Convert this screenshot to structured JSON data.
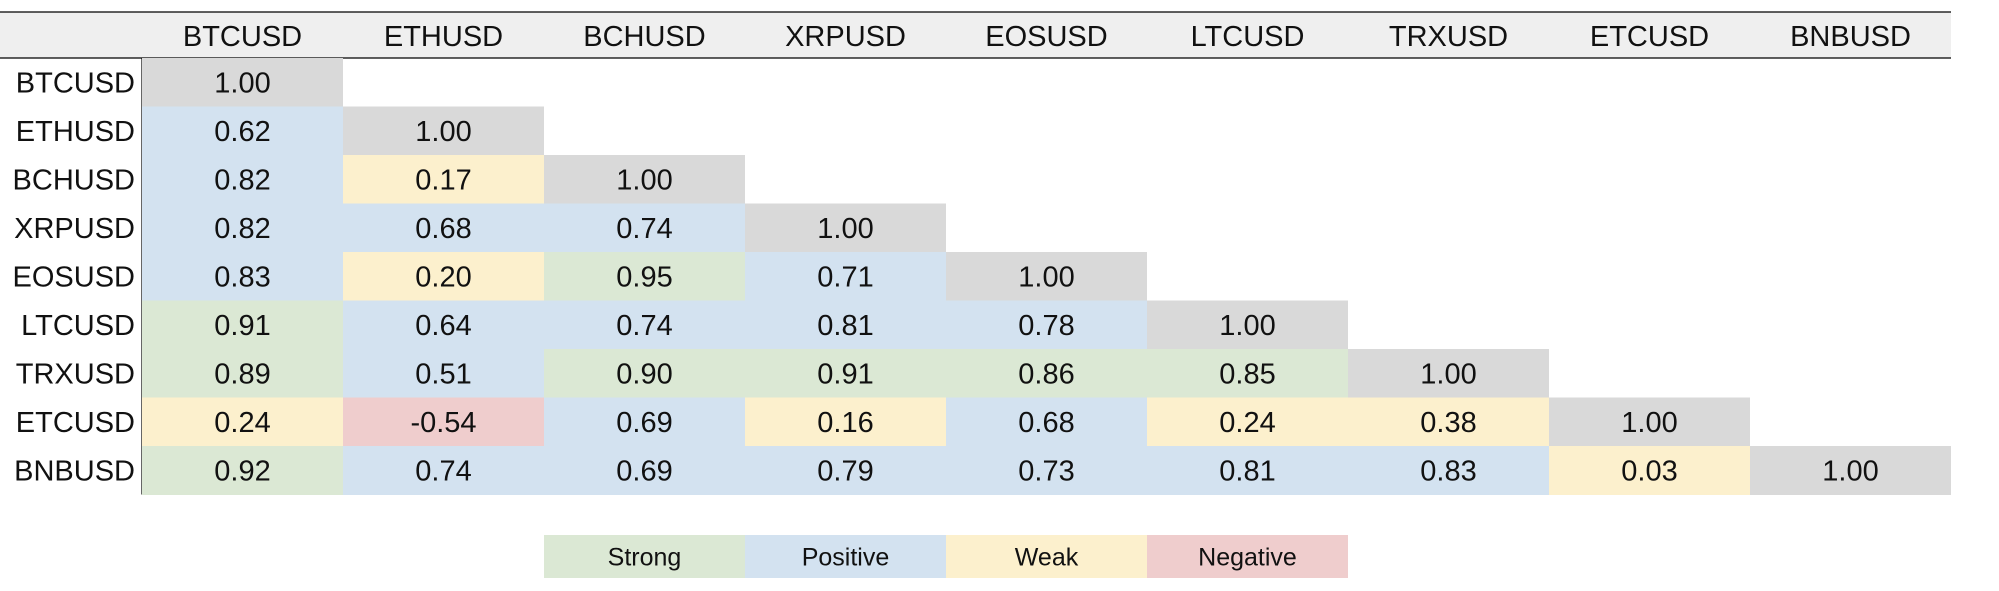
{
  "chart_data": {
    "type": "heatmap",
    "labels": [
      "BTCUSD",
      "ETHUSD",
      "BCHUSD",
      "XRPUSD",
      "EOSUSD",
      "LTCUSD",
      "TRXUSD",
      "ETCUSD",
      "BNBUSD"
    ],
    "values": [
      [
        "1.00"
      ],
      [
        "0.62",
        "1.00"
      ],
      [
        "0.82",
        "0.17",
        "1.00"
      ],
      [
        "0.82",
        "0.68",
        "0.74",
        "1.00"
      ],
      [
        "0.83",
        "0.20",
        "0.95",
        "0.71",
        "1.00"
      ],
      [
        "0.91",
        "0.64",
        "0.74",
        "0.81",
        "0.78",
        "1.00"
      ],
      [
        "0.89",
        "0.51",
        "0.90",
        "0.91",
        "0.86",
        "0.85",
        "1.00"
      ],
      [
        "0.24",
        "-0.54",
        "0.69",
        "0.16",
        "0.68",
        "0.24",
        "0.38",
        "1.00"
      ],
      [
        "0.92",
        "0.74",
        "0.69",
        "0.79",
        "0.73",
        "0.81",
        "0.83",
        "0.03",
        "1.00"
      ]
    ],
    "categories": [
      [
        "diag"
      ],
      [
        "positive",
        "diag"
      ],
      [
        "positive",
        "weak",
        "diag"
      ],
      [
        "positive",
        "positive",
        "positive",
        "diag"
      ],
      [
        "positive",
        "weak",
        "strong",
        "positive",
        "diag"
      ],
      [
        "strong",
        "positive",
        "positive",
        "positive",
        "positive",
        "diag"
      ],
      [
        "strong",
        "positive",
        "strong",
        "strong",
        "strong",
        "strong",
        "diag"
      ],
      [
        "weak",
        "negative",
        "positive",
        "weak",
        "positive",
        "weak",
        "weak",
        "diag"
      ],
      [
        "strong",
        "positive",
        "positive",
        "positive",
        "positive",
        "positive",
        "positive",
        "weak",
        "diag"
      ]
    ],
    "legend": [
      {
        "key": "strong",
        "label": "Strong"
      },
      {
        "key": "positive",
        "label": "Positive"
      },
      {
        "key": "weak",
        "label": "Weak"
      },
      {
        "key": "negative",
        "label": "Negative"
      }
    ],
    "colors": {
      "header": "#efefef",
      "diag": "#d9d9d9",
      "strong": "#dbe8d4",
      "positive": "#d3e2f0",
      "weak": "#fcf0cd",
      "negative": "#efcdcd"
    }
  }
}
